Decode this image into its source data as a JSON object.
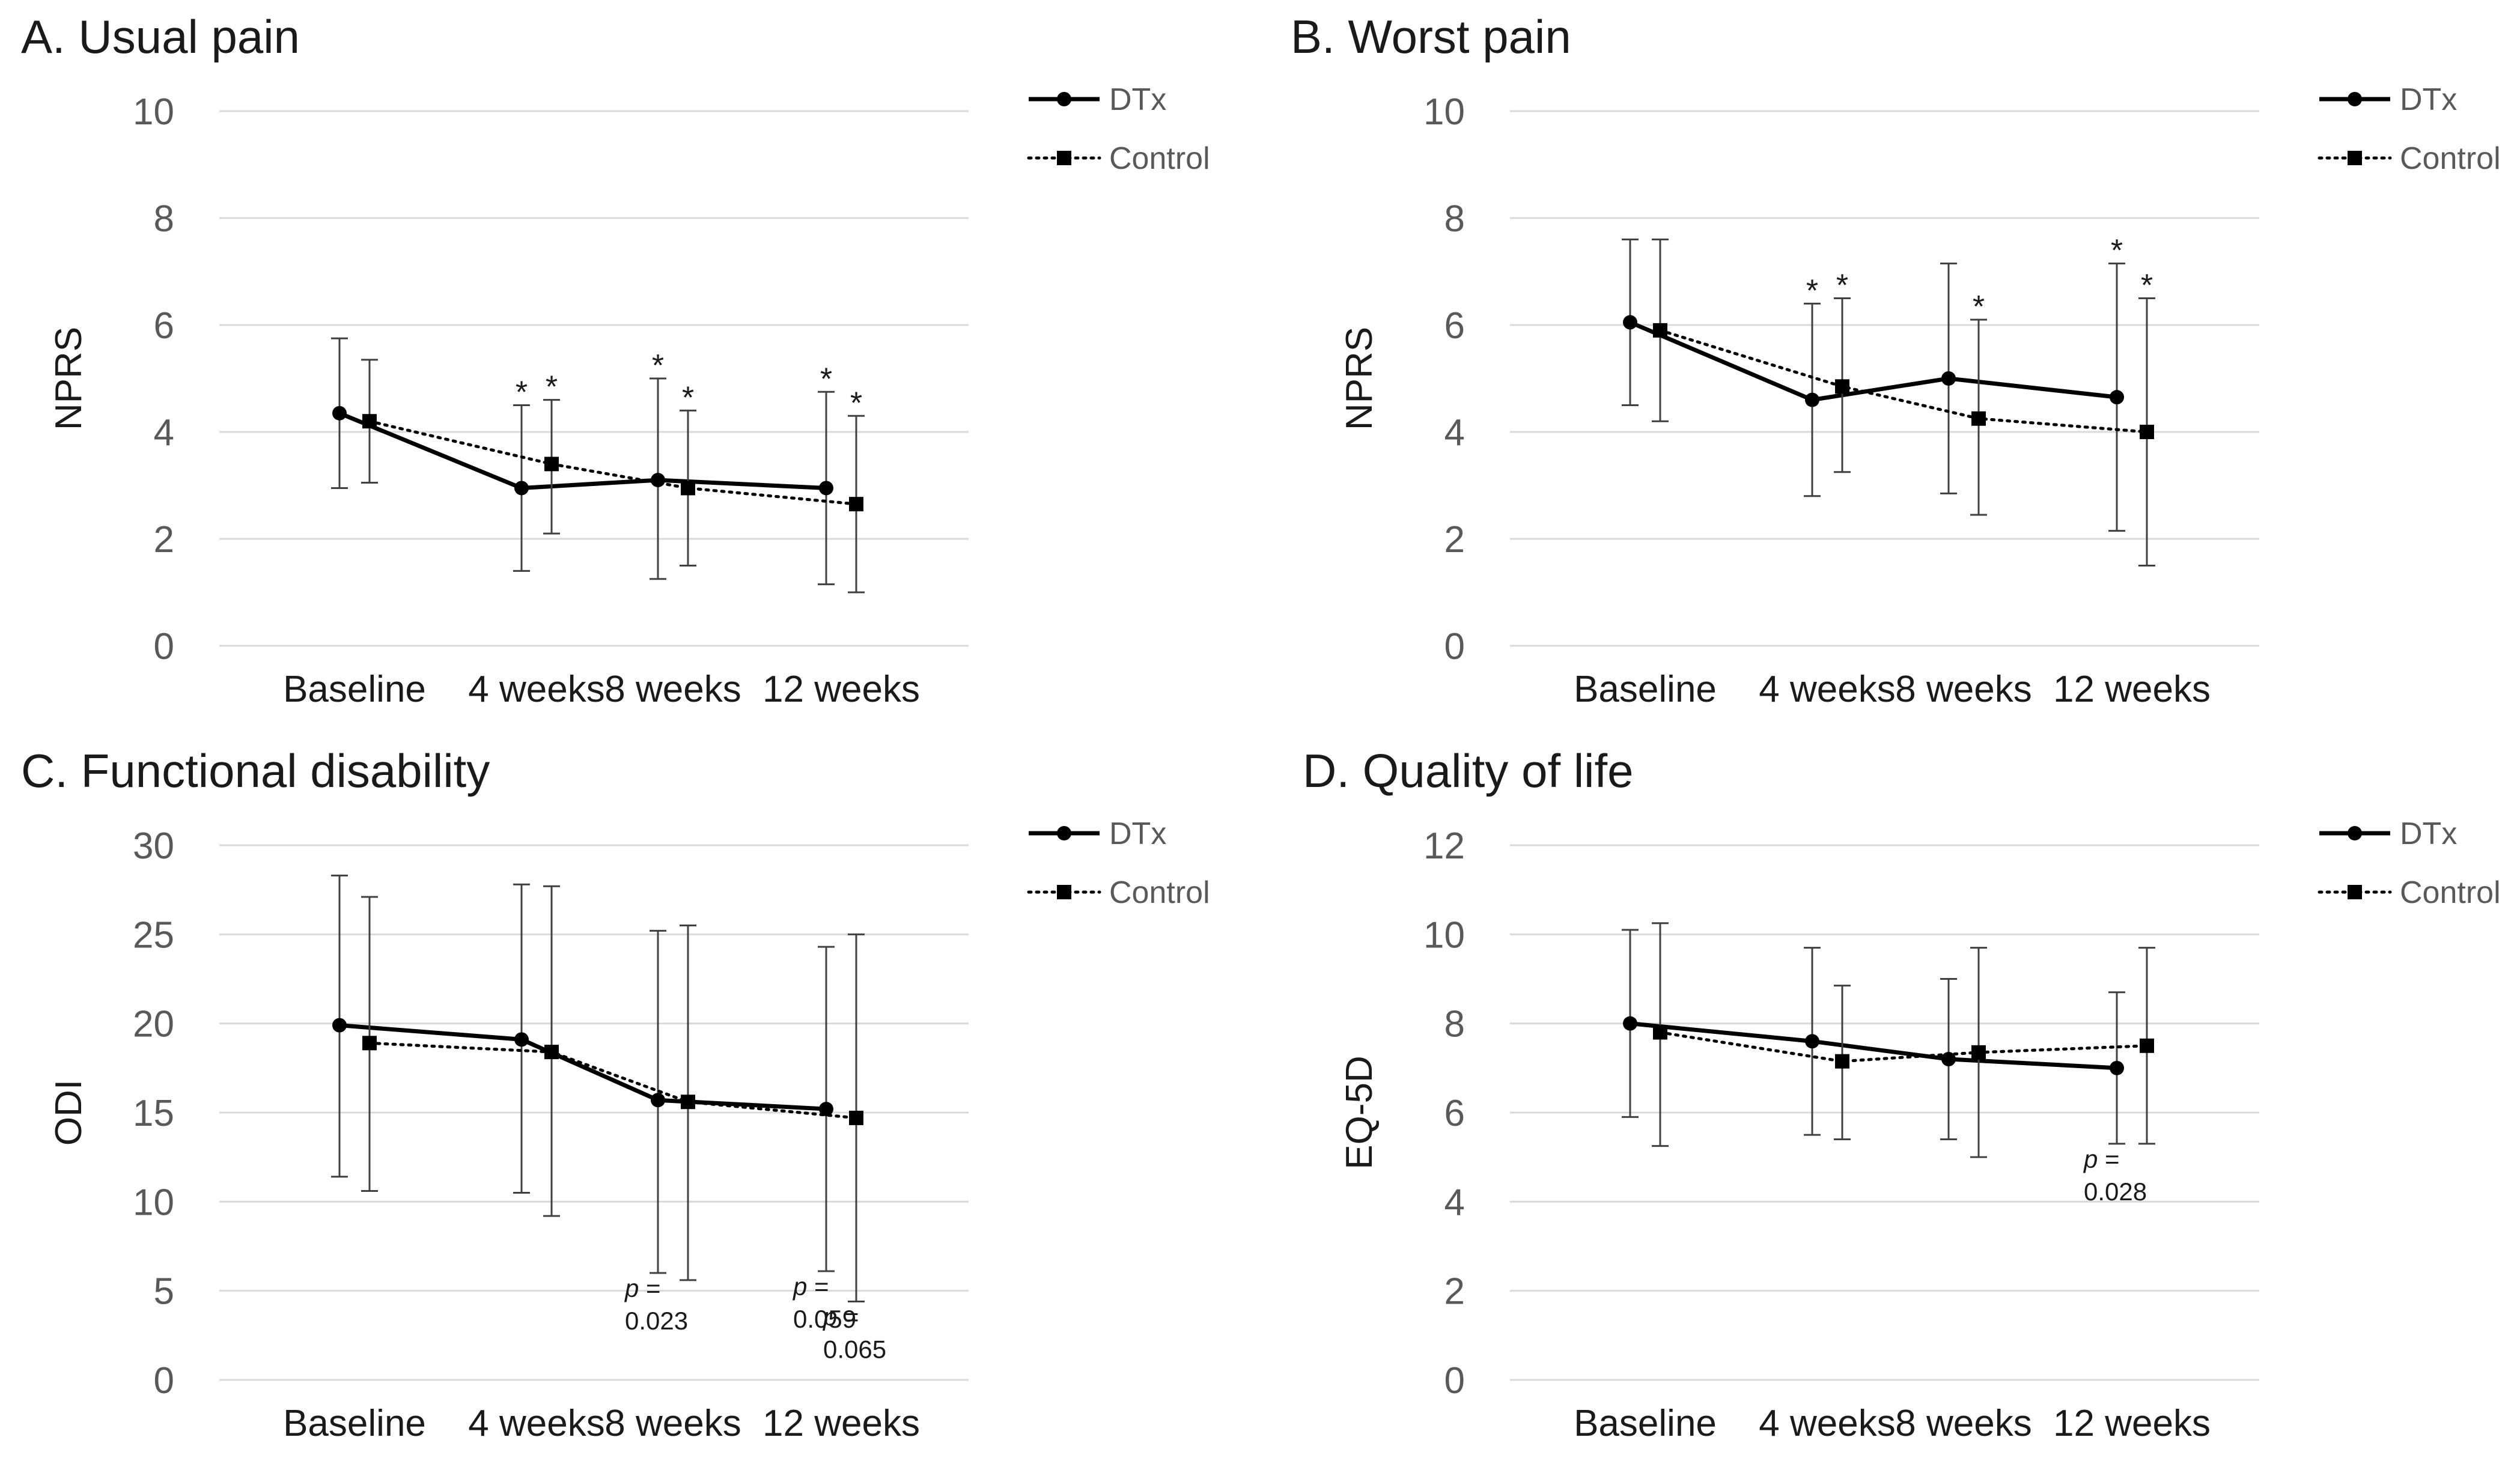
{
  "chart_data": [
    {
      "type": "line",
      "title": "A. Usual pain",
      "xlabel": "",
      "ylabel": "NPRS",
      "ylim": [
        0,
        10
      ],
      "yticks": [
        0,
        2,
        4,
        6,
        8,
        10
      ],
      "categories": [
        "Baseline",
        "4 weeks",
        "8 weeks",
        "12 weeks"
      ],
      "series": [
        {
          "name": "DTx",
          "marker": "circle",
          "line": "solid",
          "values": [
            4.35,
            2.95,
            3.1,
            2.95
          ],
          "err_low": [
            2.95,
            1.4,
            1.25,
            1.15
          ],
          "err_high": [
            5.75,
            4.5,
            5.0,
            4.75
          ],
          "stars": [
            false,
            true,
            true,
            true
          ]
        },
        {
          "name": "Control",
          "marker": "square",
          "line": "dotted",
          "values": [
            4.2,
            3.4,
            2.95,
            2.65
          ],
          "err_low": [
            3.05,
            2.1,
            1.5,
            1.0
          ],
          "err_high": [
            5.35,
            4.6,
            4.4,
            4.3
          ],
          "stars": [
            false,
            true,
            true,
            true
          ]
        }
      ],
      "star_label": "*",
      "annotations": []
    },
    {
      "type": "line",
      "title": "B. Worst pain",
      "xlabel": "",
      "ylabel": "NPRS",
      "ylim": [
        0,
        10
      ],
      "yticks": [
        0,
        2,
        4,
        6,
        8,
        10
      ],
      "categories": [
        "Baseline",
        "4 weeks",
        "8 weeks",
        "12 weeks"
      ],
      "series": [
        {
          "name": "DTx",
          "marker": "circle",
          "line": "solid",
          "values": [
            6.05,
            4.6,
            5.0,
            4.65
          ],
          "err_low": [
            4.5,
            2.8,
            2.85,
            2.15
          ],
          "err_high": [
            7.6,
            6.4,
            7.15,
            7.15
          ],
          "stars": [
            false,
            true,
            false,
            true
          ]
        },
        {
          "name": "Control",
          "marker": "square",
          "line": "dotted",
          "values": [
            5.9,
            4.85,
            4.25,
            4.0
          ],
          "err_low": [
            4.2,
            3.25,
            2.45,
            1.5
          ],
          "err_high": [
            7.6,
            6.5,
            6.1,
            6.5
          ],
          "stars": [
            false,
            true,
            true,
            true
          ]
        }
      ],
      "star_label": "*",
      "annotations": []
    },
    {
      "type": "line",
      "title": "C. Functional disability",
      "xlabel": "",
      "ylabel": "ODI",
      "ylim": [
        0,
        30
      ],
      "yticks": [
        0,
        5,
        10,
        15,
        20,
        25,
        30
      ],
      "categories": [
        "Baseline",
        "4 weeks",
        "8 weeks",
        "12 weeks"
      ],
      "series": [
        {
          "name": "DTx",
          "marker": "circle",
          "line": "solid",
          "values": [
            19.9,
            19.1,
            15.7,
            15.2
          ],
          "err_low": [
            11.4,
            10.5,
            6.0,
            6.1
          ],
          "err_high": [
            28.3,
            27.8,
            25.2,
            24.3
          ],
          "stars": [
            false,
            false,
            false,
            false
          ]
        },
        {
          "name": "Control",
          "marker": "square",
          "line": "dotted",
          "values": [
            18.9,
            18.4,
            15.6,
            14.7
          ],
          "err_low": [
            10.6,
            9.2,
            5.6,
            4.4
          ],
          "err_high": [
            27.1,
            27.7,
            25.5,
            25.0
          ],
          "stars": [
            false,
            false,
            false,
            false
          ]
        }
      ],
      "star_label": "*",
      "annotations": [
        {
          "p_label": "p",
          "eq": " =",
          "value": "0.023",
          "category_index": 2,
          "series_index": 0
        },
        {
          "p_label": "p",
          "eq": " =",
          "value": "0.059",
          "category_index": 3,
          "series_index": 0
        },
        {
          "p_label": "p",
          "eq": " =",
          "value": "0.065",
          "category_index": 3,
          "series_index": 1
        }
      ]
    },
    {
      "type": "line",
      "title": "D. Quality of life",
      "xlabel": "",
      "ylabel": "EQ-5D",
      "ylim": [
        0,
        12
      ],
      "yticks": [
        0,
        2,
        4,
        6,
        8,
        10,
        12
      ],
      "categories": [
        "Baseline",
        "4 weeks",
        "8 weeks",
        "12 weeks"
      ],
      "series": [
        {
          "name": "DTx",
          "marker": "circle",
          "line": "solid",
          "values": [
            8.0,
            7.6,
            7.2,
            7.0
          ],
          "err_low": [
            5.9,
            5.5,
            5.4,
            5.3
          ],
          "err_high": [
            10.1,
            9.7,
            9.0,
            8.7
          ],
          "stars": [
            false,
            false,
            false,
            false
          ]
        },
        {
          "name": "Control",
          "marker": "square",
          "line": "dotted",
          "values": [
            7.8,
            7.15,
            7.35,
            7.5
          ],
          "err_low": [
            5.25,
            5.4,
            5.0,
            5.3
          ],
          "err_high": [
            10.25,
            8.85,
            9.7,
            9.7
          ],
          "stars": [
            false,
            false,
            false,
            false
          ]
        }
      ],
      "star_label": "*",
      "annotations": [
        {
          "p_label": "p",
          "eq": " =",
          "value": "0.028",
          "category_index": 3,
          "series_index": 0
        }
      ]
    }
  ]
}
